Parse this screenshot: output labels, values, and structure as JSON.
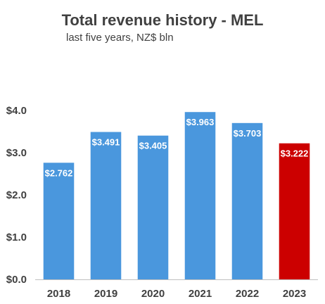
{
  "chart_data": {
    "type": "bar",
    "title": "Total revenue history - MEL",
    "subtitle": "last five years, NZ$ bln",
    "xlabel": "",
    "ylabel": "",
    "categories": [
      "2018",
      "2019",
      "2020",
      "2021",
      "2022",
      "2023"
    ],
    "values": [
      2.762,
      3.491,
      3.405,
      3.963,
      3.703,
      3.222
    ],
    "value_labels": [
      "$2.762",
      "$3.491",
      "$3.405",
      "$3.963",
      "$3.703",
      "$3.222"
    ],
    "ylim": [
      0,
      4.0
    ],
    "yticks": [
      0.0,
      1.0,
      2.0,
      3.0,
      4.0
    ],
    "ytick_labels": [
      "$0.0",
      "$1.0",
      "$2.0",
      "$3.0",
      "$4.0"
    ],
    "grid": false,
    "legend": "none",
    "colors": {
      "default_bar": "#4a97dd",
      "highlight_bar": "#cc0000",
      "highlight_index": 5,
      "text": "#404040",
      "axis": "#bfbfbf"
    }
  }
}
